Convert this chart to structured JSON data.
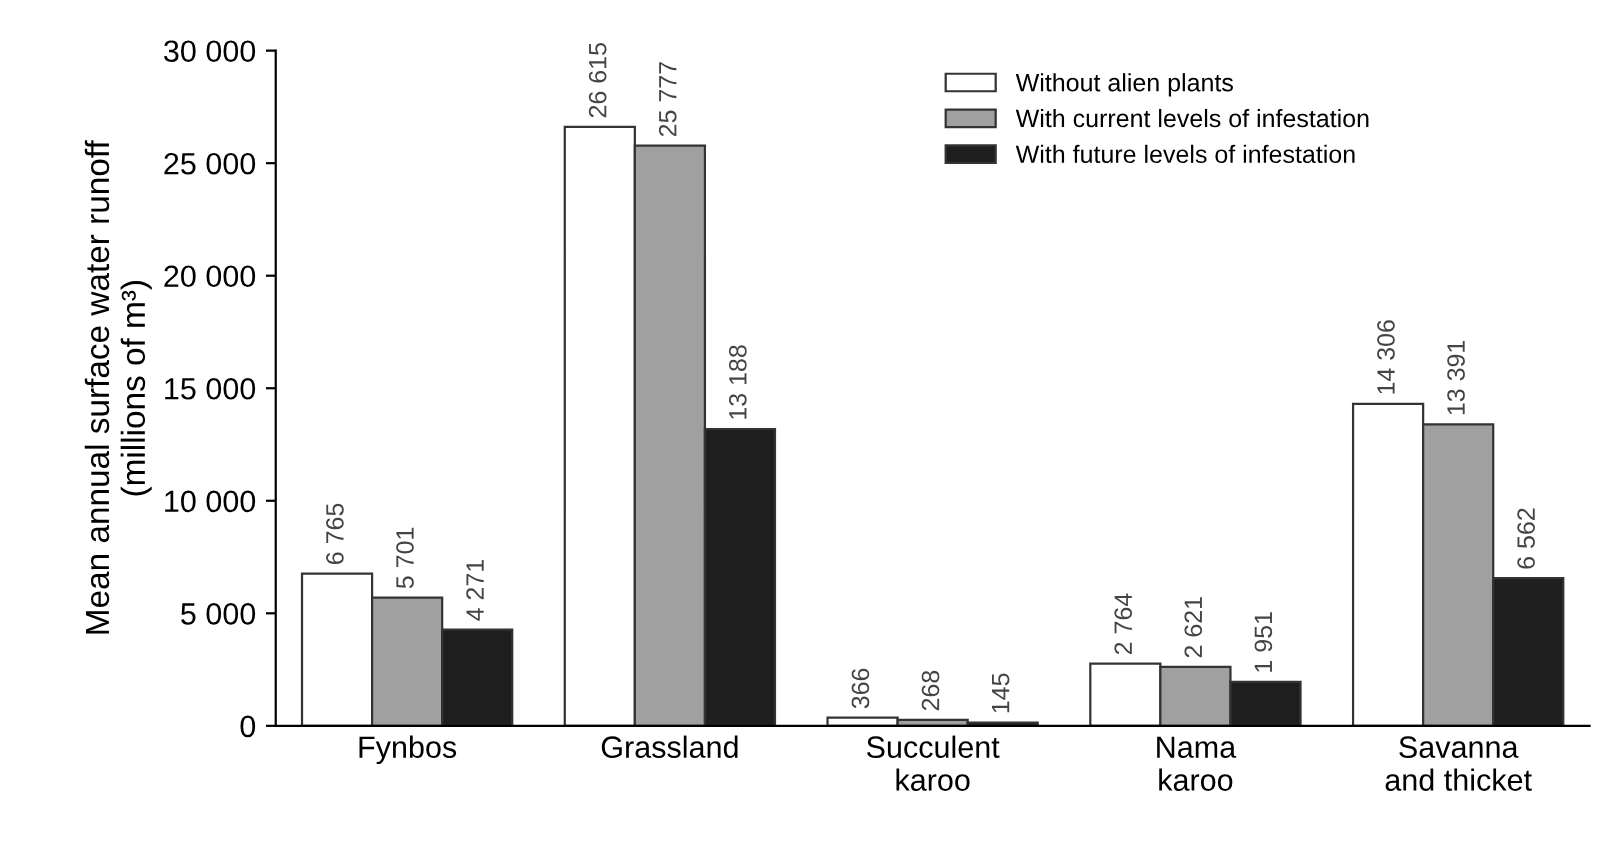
{
  "chart_data": {
    "type": "bar",
    "ylabel": "Mean annual surface water runoff\n(millions of m³)",
    "categories": [
      "Fynbos",
      "Grassland",
      "Succulent\nkaroo",
      "Nama\nkaroo",
      "Savanna\nand thicket"
    ],
    "series": [
      {
        "name": "Without alien plants",
        "color": "#ffffff",
        "values": [
          6765,
          26615,
          366,
          2764,
          14306
        ],
        "value_labels": [
          "6 765",
          "26 615",
          "366",
          "2 764",
          "14 306"
        ]
      },
      {
        "name": "With current levels of infestation",
        "color": "#a0a0a0",
        "values": [
          5701,
          25777,
          268,
          2621,
          13391
        ],
        "value_labels": [
          "5 701",
          "25 777",
          "268",
          "2 621",
          "13 391"
        ]
      },
      {
        "name": "With future levels of infestation",
        "color": "#1e1e1e",
        "values": [
          4271,
          13188,
          145,
          1951,
          6562
        ],
        "value_labels": [
          "4 271",
          "13 188",
          "145",
          "1 951",
          "6 562"
        ]
      }
    ],
    "ylim": [
      0,
      30000
    ],
    "yticks": [
      0,
      {
        "value": 5000,
        "label": "5 000"
      },
      {
        "value": 10000,
        "label": "10 000"
      },
      {
        "value": 15000,
        "label": "15 000"
      },
      {
        "value": 20000,
        "label": "20 000"
      },
      {
        "value": 25000,
        "label": "25 000"
      },
      {
        "value": 30000,
        "label": "30 000"
      }
    ],
    "legend": "top right",
    "grid": false
  }
}
